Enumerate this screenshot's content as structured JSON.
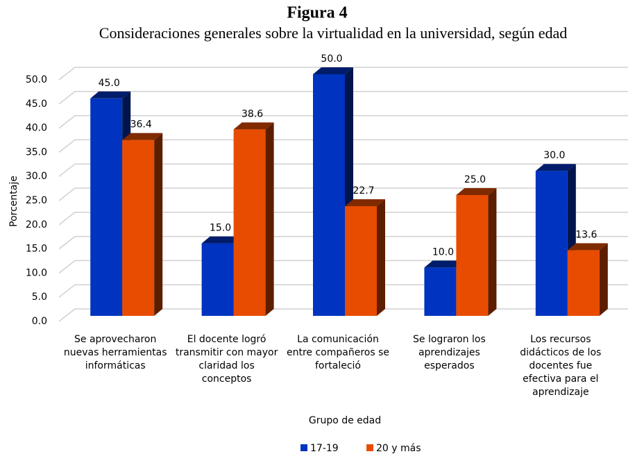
{
  "chart_data": {
    "type": "bar3d",
    "title": "Figura 4",
    "subtitle": "Consideraciones generales sobre la virtualidad en la universidad, según edad",
    "y_label": "Porcentaje",
    "x_label": "Grupo de edad",
    "categories": [
      "Se aprovecharon nuevas herramientas informáticas",
      "El docente logró transmitir con mayor claridad los conceptos",
      "La comunicación entre compañeros se fortaleció",
      "Se lograron los aprendizajes esperados",
      "Los recursos didácticos de los docentes fue efectiva para el aprendizaje"
    ],
    "series": [
      {
        "name": "17-19",
        "color": "#0033c0",
        "values": [
          45,
          15,
          50,
          10,
          30
        ],
        "value_labels": [
          "45.0",
          "15.0",
          "50.0",
          "10.0",
          "30.0"
        ]
      },
      {
        "name": "20 y más",
        "color": "#e84c00",
        "values": [
          36.4,
          38.6,
          22.7,
          25,
          13.6
        ],
        "value_labels": [
          "36.4",
          "38.6",
          "22.7",
          "25.0",
          "13.6"
        ]
      }
    ],
    "ylim": [
      0,
      50
    ],
    "yticks": [
      {
        "value": 0,
        "label": "0.0"
      },
      {
        "value": 5,
        "label": "5.0"
      },
      {
        "value": 10,
        "label": "10.0"
      },
      {
        "value": 15,
        "label": "15.0"
      },
      {
        "value": 20,
        "label": "20.0"
      },
      {
        "value": 25,
        "label": "25.0"
      },
      {
        "value": 30,
        "label": "30.0"
      },
      {
        "value": 35,
        "label": "35.0"
      },
      {
        "value": 40,
        "label": "40.0"
      },
      {
        "value": 45,
        "label": "45.0"
      },
      {
        "value": 50,
        "label": "50.0"
      }
    ],
    "grid": true,
    "legend": "bottom"
  }
}
